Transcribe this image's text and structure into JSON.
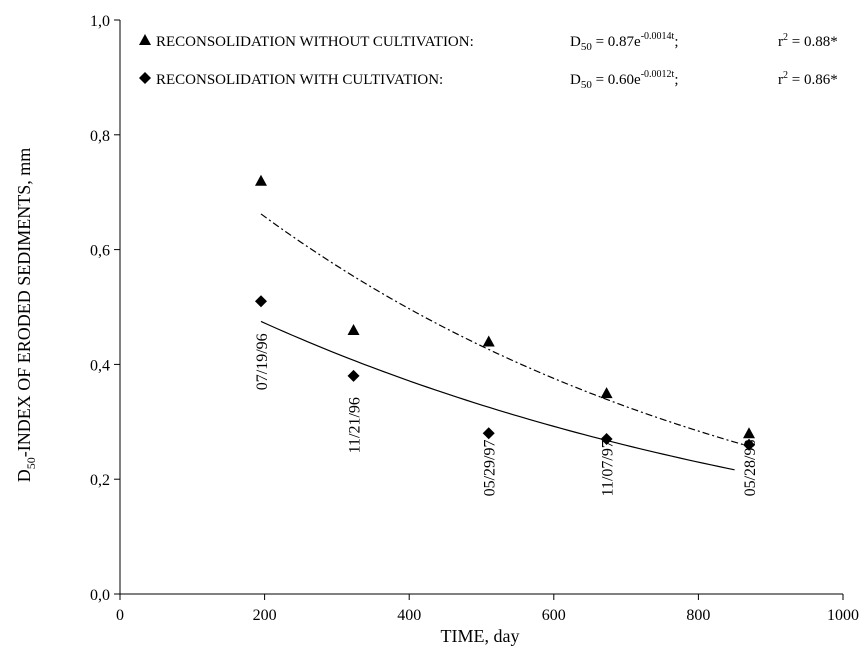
{
  "chart_data": {
    "type": "scatter",
    "xlabel": "TIME, day",
    "ylabel_parts": [
      "D",
      "50",
      "-INDEX OF ERODED SEDIMENTS, mm"
    ],
    "xlim": [
      0,
      1000
    ],
    "ylim": [
      0,
      1.0
    ],
    "x_ticks": [
      0,
      200,
      400,
      600,
      800,
      1000
    ],
    "x_tick_labels": [
      "0",
      "200",
      "400",
      "600",
      "800",
      "1000"
    ],
    "y_ticks": [
      0,
      0.2,
      0.4,
      0.6,
      0.8,
      1.0
    ],
    "y_tick_labels": [
      "0,0",
      "0,2",
      "0,4",
      "0,6",
      "0,8",
      "1,0"
    ],
    "grid": false,
    "legend_position": "top",
    "series": [
      {
        "name": "RECONSOLIDATION WITHOUT CULTIVATION:",
        "marker": "triangle",
        "x": [
          195,
          323,
          510,
          673,
          870
        ],
        "y": [
          0.72,
          0.46,
          0.44,
          0.35,
          0.28
        ],
        "equation": {
          "prefix": "D",
          "sub": "50",
          "mid": " = 0.87e",
          "sup": "-0.0014t",
          "suffix": ";"
        },
        "r2": {
          "base": "r",
          "sup": "2",
          "text": " = 0.88*"
        },
        "trend": {
          "coef": 0.87,
          "rate": -0.0014,
          "x_start": 195,
          "x_end": 870,
          "style": "dashdot"
        }
      },
      {
        "name": "RECONSOLIDATION WITH CULTIVATION:",
        "marker": "diamond",
        "x": [
          195,
          323,
          510,
          673,
          870
        ],
        "y": [
          0.51,
          0.38,
          0.28,
          0.27,
          0.26
        ],
        "equation": {
          "prefix": "D",
          "sub": "50",
          "mid": " = 0.60e",
          "sup": "-0.0012t",
          "suffix": ";"
        },
        "r2": {
          "base": "r",
          "sup": "2",
          "text": " = 0.86*"
        },
        "trend": {
          "coef": 0.6,
          "rate": -0.0012,
          "x_start": 195,
          "x_end": 850,
          "style": "solid"
        }
      }
    ],
    "annotations": [
      {
        "text": "07/19/96",
        "x": 195,
        "y": 0.355
      },
      {
        "text": "11/21/96",
        "x": 323,
        "y": 0.245
      },
      {
        "text": "05/29/97",
        "x": 510,
        "y": 0.17
      },
      {
        "text": "11/07/97",
        "x": 673,
        "y": 0.17
      },
      {
        "text": "05/28/98",
        "x": 870,
        "y": 0.17
      }
    ]
  }
}
